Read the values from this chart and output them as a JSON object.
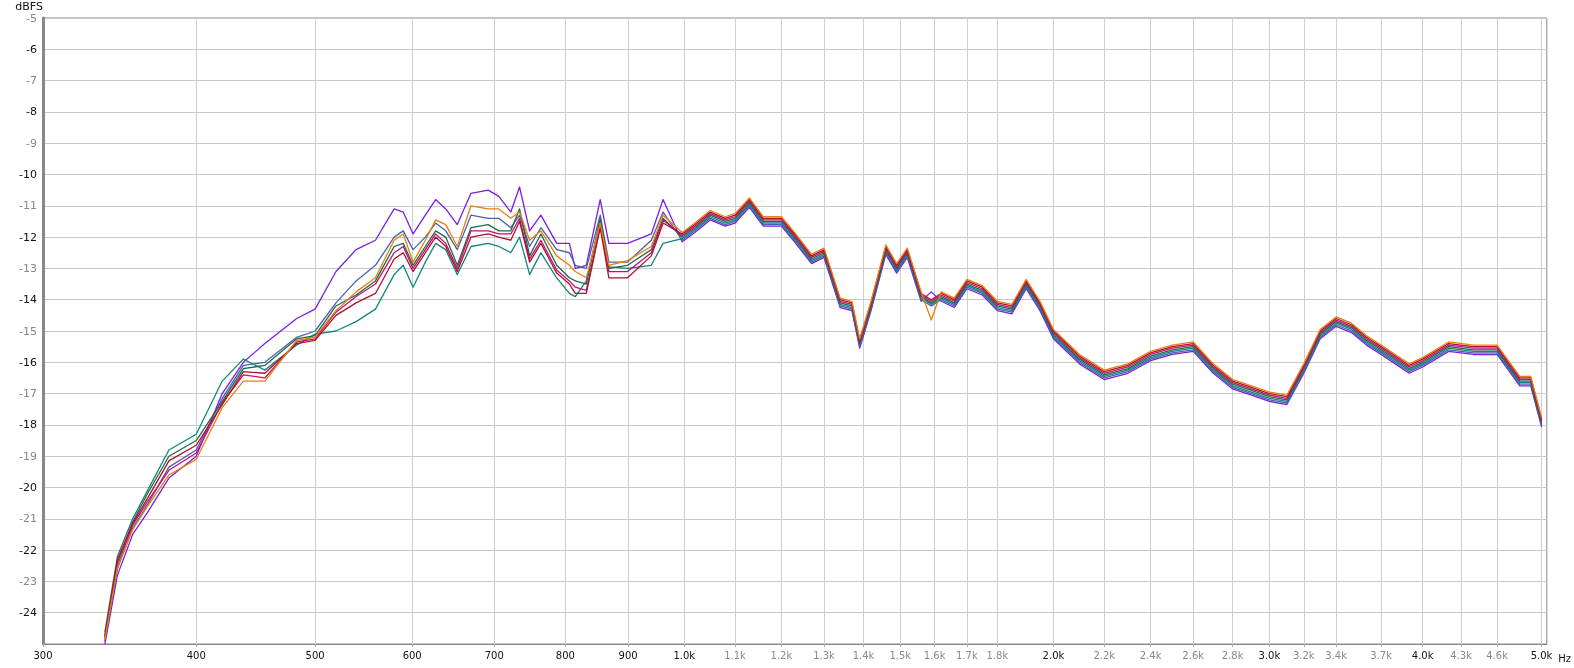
{
  "chart_data": {
    "type": "line",
    "ylabel": "dBFS",
    "x": [
      337,
      345,
      355,
      365,
      380,
      400,
      420,
      437,
      455,
      483,
      500,
      520,
      540,
      560,
      580,
      590,
      601,
      615,
      627,
      639,
      653,
      670,
      692,
      706,
      722,
      734,
      748,
      764,
      787,
      806,
      815,
      832,
      854,
      868,
      899,
      940,
      961,
      996,
      1020,
      1050,
      1080,
      1100,
      1130,
      1160,
      1200,
      1230,
      1270,
      1300,
      1340,
      1370,
      1390,
      1420,
      1460,
      1490,
      1520,
      1560,
      1590,
      1620,
      1660,
      1700,
      1750,
      1800,
      1850,
      1900,
      1950,
      2000,
      2100,
      2200,
      2300,
      2400,
      2500,
      2600,
      2700,
      2800,
      2900,
      3000,
      3100,
      3200,
      3300,
      3400,
      3500,
      3600,
      3700,
      3800,
      3900,
      4000,
      4200,
      4400,
      4600,
      4800,
      4900,
      5000
    ],
    "series": [
      {
        "color": "#7a1fe0",
        "values": [
          -25,
          -22.8,
          -21.5,
          -20.8,
          -19.7,
          -19.0,
          -17.0,
          -16.0,
          -15.4,
          -14.6,
          -14.3,
          -13.1,
          -12.4,
          -12.1,
          -11.1,
          -11.2,
          -11.9,
          -11.3,
          -10.8,
          -11.1,
          -11.6,
          -10.6,
          -10.5,
          -10.7,
          -11.2,
          -10.4,
          -11.8,
          -11.3,
          -12.2,
          -12.2,
          -13.0,
          -12.9,
          -10.8,
          -12.2,
          -12.2,
          -11.9,
          -10.8,
          -12.15,
          -11.85,
          -11.45,
          -11.65,
          -11.55,
          -11.05,
          -11.65,
          -11.65,
          -12.15,
          -12.85,
          -12.65,
          -14.25,
          -14.35,
          -15.55,
          -14.35,
          -12.55,
          -13.15,
          -12.65,
          -14.05,
          -13.75,
          -14.05,
          -14.25,
          -13.65,
          -13.85,
          -14.35,
          -14.45,
          -13.65,
          -14.35,
          -15.25,
          -16.05,
          -16.55,
          -16.35,
          -15.95,
          -15.75,
          -15.65,
          -16.35,
          -16.85,
          -17.05,
          -17.25,
          -17.35,
          -16.35,
          -15.25,
          -14.85,
          -15.05,
          -15.45,
          -15.75,
          -16.05,
          -16.35,
          -16.15,
          -15.65,
          -15.75,
          -15.75,
          -16.75,
          -16.75,
          -18.05
        ]
      },
      {
        "color": "#4a60b0",
        "values": [
          -24.8,
          -22.6,
          -21.3,
          -20.55,
          -19.35,
          -18.8,
          -17.15,
          -16.1,
          -16.0,
          -15.2,
          -15.0,
          -14.1,
          -13.4,
          -12.9,
          -12.0,
          -11.8,
          -12.4,
          -12.0,
          -11.55,
          -11.8,
          -12.4,
          -11.3,
          -11.4,
          -11.4,
          -11.7,
          -11.3,
          -12.3,
          -11.7,
          -12.4,
          -12.5,
          -12.9,
          -13.0,
          -11.3,
          -12.8,
          -12.8,
          -12.1,
          -11.2,
          -12.1,
          -11.8,
          -11.4,
          -11.6,
          -11.5,
          -11.0,
          -11.6,
          -11.6,
          -12.1,
          -12.8,
          -12.6,
          -14.2,
          -14.3,
          -15.5,
          -14.3,
          -12.5,
          -13.1,
          -12.6,
          -14.0,
          -14.2,
          -14.0,
          -14.2,
          -13.6,
          -13.8,
          -14.3,
          -14.4,
          -13.6,
          -14.3,
          -15.2,
          -16.0,
          -16.5,
          -16.3,
          -15.9,
          -15.7,
          -15.6,
          -16.3,
          -16.8,
          -17.0,
          -17.2,
          -17.3,
          -16.3,
          -15.2,
          -14.8,
          -15.0,
          -15.4,
          -15.7,
          -16.0,
          -16.3,
          -16.1,
          -15.6,
          -15.7,
          -15.7,
          -16.7,
          -16.7,
          -18.0
        ]
      },
      {
        "color": "#12857d",
        "values": [
          -24.6,
          -22.2,
          -21.0,
          -20.1,
          -18.8,
          -18.3,
          -16.6,
          -15.9,
          -16.25,
          -15.45,
          -15.1,
          -15.0,
          -14.7,
          -14.3,
          -13.2,
          -12.9,
          -13.6,
          -12.8,
          -12.2,
          -12.4,
          -13.2,
          -12.3,
          -12.2,
          -12.3,
          -12.5,
          -12.0,
          -13.2,
          -12.5,
          -13.3,
          -13.8,
          -13.9,
          -13.4,
          -11.5,
          -12.95,
          -13.0,
          -12.9,
          -12.2,
          -12.05,
          -11.75,
          -11.35,
          -11.55,
          -11.45,
          -10.95,
          -11.55,
          -11.55,
          -12.05,
          -12.75,
          -12.55,
          -14.15,
          -14.25,
          -15.45,
          -14.25,
          -12.45,
          -13.05,
          -12.55,
          -13.95,
          -14.15,
          -13.95,
          -14.15,
          -13.55,
          -13.75,
          -14.25,
          -14.35,
          -13.55,
          -14.25,
          -15.15,
          -15.95,
          -16.45,
          -16.25,
          -15.85,
          -15.65,
          -15.55,
          -16.25,
          -16.75,
          -16.95,
          -17.15,
          -17.25,
          -16.25,
          -15.15,
          -14.75,
          -14.95,
          -15.35,
          -15.65,
          -15.95,
          -16.25,
          -16.05,
          -15.55,
          -15.65,
          -15.65,
          -16.65,
          -16.65,
          -17.95
        ]
      },
      {
        "color": "#1e6b45",
        "values": [
          -24.7,
          -22.4,
          -21.1,
          -20.2,
          -19.0,
          -18.5,
          -17.25,
          -16.2,
          -16.1,
          -15.25,
          -15.15,
          -14.2,
          -13.85,
          -13.4,
          -12.3,
          -12.2,
          -12.9,
          -12.3,
          -11.8,
          -12.0,
          -12.9,
          -11.7,
          -11.6,
          -11.8,
          -11.8,
          -11.1,
          -12.6,
          -11.9,
          -12.9,
          -13.3,
          -13.4,
          -13.5,
          -11.4,
          -13.0,
          -12.9,
          -12.4,
          -11.4,
          -12.0,
          -11.7,
          -11.3,
          -11.5,
          -11.4,
          -10.9,
          -11.5,
          -11.5,
          -12.0,
          -12.7,
          -12.5,
          -14.1,
          -14.2,
          -15.4,
          -14.2,
          -12.4,
          -13.0,
          -12.5,
          -13.9,
          -14.1,
          -13.9,
          -14.1,
          -13.5,
          -13.7,
          -14.2,
          -14.3,
          -13.5,
          -14.2,
          -15.1,
          -15.9,
          -16.4,
          -16.2,
          -15.8,
          -15.6,
          -15.5,
          -16.2,
          -16.7,
          -16.9,
          -17.1,
          -17.2,
          -16.2,
          -15.1,
          -14.7,
          -14.9,
          -15.3,
          -15.6,
          -15.9,
          -16.2,
          -16.0,
          -15.5,
          -15.6,
          -15.6,
          -16.6,
          -16.6,
          -17.9
        ]
      },
      {
        "color": "#c0107a",
        "values": [
          -24.9,
          -22.5,
          -21.2,
          -20.45,
          -19.45,
          -18.9,
          -17.3,
          -16.4,
          -16.5,
          -15.35,
          -15.25,
          -14.4,
          -13.9,
          -13.5,
          -12.5,
          -12.3,
          -13.0,
          -12.4,
          -11.9,
          -12.2,
          -13.0,
          -11.8,
          -11.8,
          -11.9,
          -11.9,
          -11.4,
          -12.7,
          -12.1,
          -13.05,
          -13.4,
          -13.6,
          -13.7,
          -11.65,
          -13.1,
          -13.1,
          -12.5,
          -11.45,
          -11.95,
          -11.65,
          -11.25,
          -11.45,
          -11.35,
          -10.85,
          -11.45,
          -11.45,
          -11.95,
          -12.65,
          -12.45,
          -14.05,
          -14.15,
          -15.35,
          -14.15,
          -12.35,
          -12.95,
          -12.45,
          -13.85,
          -14.05,
          -13.85,
          -14.05,
          -13.45,
          -13.65,
          -14.15,
          -14.25,
          -13.45,
          -14.15,
          -15.05,
          -15.85,
          -16.35,
          -16.15,
          -15.75,
          -15.55,
          -15.45,
          -16.15,
          -16.65,
          -16.85,
          -17.05,
          -17.15,
          -16.15,
          -15.05,
          -14.65,
          -14.85,
          -15.25,
          -15.55,
          -15.85,
          -16.15,
          -15.95,
          -15.45,
          -15.55,
          -15.55,
          -16.55,
          -16.55,
          -17.85
        ]
      },
      {
        "color": "#b0102a",
        "values": [
          -24.75,
          -22.3,
          -21.15,
          -20.35,
          -19.15,
          -18.65,
          -17.35,
          -16.3,
          -16.35,
          -15.4,
          -15.3,
          -14.5,
          -14.1,
          -13.8,
          -12.7,
          -12.5,
          -13.1,
          -12.5,
          -12.0,
          -12.3,
          -13.1,
          -12.0,
          -11.9,
          -12.0,
          -12.1,
          -11.5,
          -12.8,
          -12.2,
          -13.15,
          -13.5,
          -13.8,
          -13.8,
          -11.7,
          -13.3,
          -13.3,
          -12.6,
          -11.55,
          -11.9,
          -11.6,
          -11.2,
          -11.4,
          -11.3,
          -10.8,
          -11.4,
          -11.4,
          -11.9,
          -12.6,
          -12.4,
          -14.0,
          -14.1,
          -15.3,
          -14.1,
          -12.3,
          -12.9,
          -12.4,
          -13.8,
          -14.0,
          -13.8,
          -14.0,
          -13.4,
          -13.6,
          -14.1,
          -14.2,
          -13.4,
          -14.1,
          -15.0,
          -15.8,
          -16.3,
          -16.1,
          -15.7,
          -15.5,
          -15.4,
          -16.1,
          -16.6,
          -16.8,
          -17.0,
          -17.1,
          -16.1,
          -15.0,
          -14.6,
          -14.8,
          -15.2,
          -15.5,
          -15.8,
          -16.1,
          -15.9,
          -15.4,
          -15.5,
          -15.5,
          -16.5,
          -16.5,
          -17.8
        ]
      },
      {
        "color": "#e6800f",
        "values": [
          -24.85,
          -22.55,
          -21.35,
          -20.6,
          -19.6,
          -19.1,
          -17.45,
          -16.6,
          -16.6,
          -15.3,
          -15.2,
          -14.35,
          -13.75,
          -13.3,
          -12.1,
          -11.9,
          -12.8,
          -12.1,
          -11.45,
          -11.6,
          -12.3,
          -11.0,
          -11.1,
          -11.1,
          -11.4,
          -11.2,
          -12.1,
          -11.8,
          -12.6,
          -12.9,
          -13.1,
          -13.3,
          -11.55,
          -12.9,
          -12.75,
          -12.3,
          -11.3,
          -11.85,
          -11.55,
          -11.15,
          -11.35,
          -11.25,
          -10.75,
          -11.35,
          -11.35,
          -11.85,
          -12.55,
          -12.35,
          -13.95,
          -14.05,
          -15.25,
          -14.05,
          -12.25,
          -12.85,
          -12.35,
          -13.75,
          -14.65,
          -13.75,
          -13.95,
          -13.35,
          -13.55,
          -14.05,
          -14.15,
          -13.35,
          -14.05,
          -14.95,
          -15.75,
          -16.25,
          -16.05,
          -15.65,
          -15.45,
          -15.35,
          -16.05,
          -16.55,
          -16.75,
          -16.95,
          -17.05,
          -16.05,
          -14.95,
          -14.55,
          -14.75,
          -15.15,
          -15.45,
          -15.75,
          -16.05,
          -15.85,
          -15.35,
          -15.45,
          -15.45,
          -16.45,
          -16.45,
          -17.75
        ]
      }
    ],
    "xlim": [
      300,
      5050
    ],
    "xticks": [
      300,
      400,
      500,
      600,
      700,
      800,
      900,
      {
        "value": 1000,
        "label": "1.0k"
      },
      {
        "value": 1100,
        "label": "1.1k"
      },
      {
        "value": 1200,
        "label": "1.2k"
      },
      {
        "value": 1300,
        "label": "1.3k"
      },
      {
        "value": 1400,
        "label": "1.4k"
      },
      {
        "value": 1500,
        "label": "1.5k"
      },
      {
        "value": 1600,
        "label": "1.6k"
      },
      {
        "value": 1700,
        "label": "1.7k"
      },
      {
        "value": 1800,
        "label": "1.8k"
      },
      {
        "value": 2000,
        "label": "2.0k"
      },
      {
        "value": 2200,
        "label": "2.2k"
      },
      {
        "value": 2400,
        "label": "2.4k"
      },
      {
        "value": 2600,
        "label": "2.6k"
      },
      {
        "value": 2800,
        "label": "2.8k"
      },
      {
        "value": 3000,
        "label": "3.0k"
      },
      {
        "value": 3200,
        "label": "3.2k"
      },
      {
        "value": 3400,
        "label": "3.4k"
      },
      {
        "value": 3700,
        "label": "3.7k"
      },
      {
        "value": 4000,
        "label": "4.0k"
      },
      {
        "value": 4300,
        "label": "4.3k"
      },
      {
        "value": 4600,
        "label": "4.6k"
      },
      {
        "value": 5000,
        "label": "5.0k"
      }
    ],
    "xlabel": "Hz",
    "ylim": [
      -25,
      -5
    ],
    "yticks": [
      -5,
      -6,
      -7,
      -8,
      -9,
      -10,
      -11,
      -12,
      -13,
      -14,
      -15,
      -16,
      -17,
      -18,
      -19,
      -20,
      -21,
      -22,
      -23,
      -24
    ],
    "log": "x",
    "grid": true,
    "marker": "none",
    "line_style": "solid"
  }
}
